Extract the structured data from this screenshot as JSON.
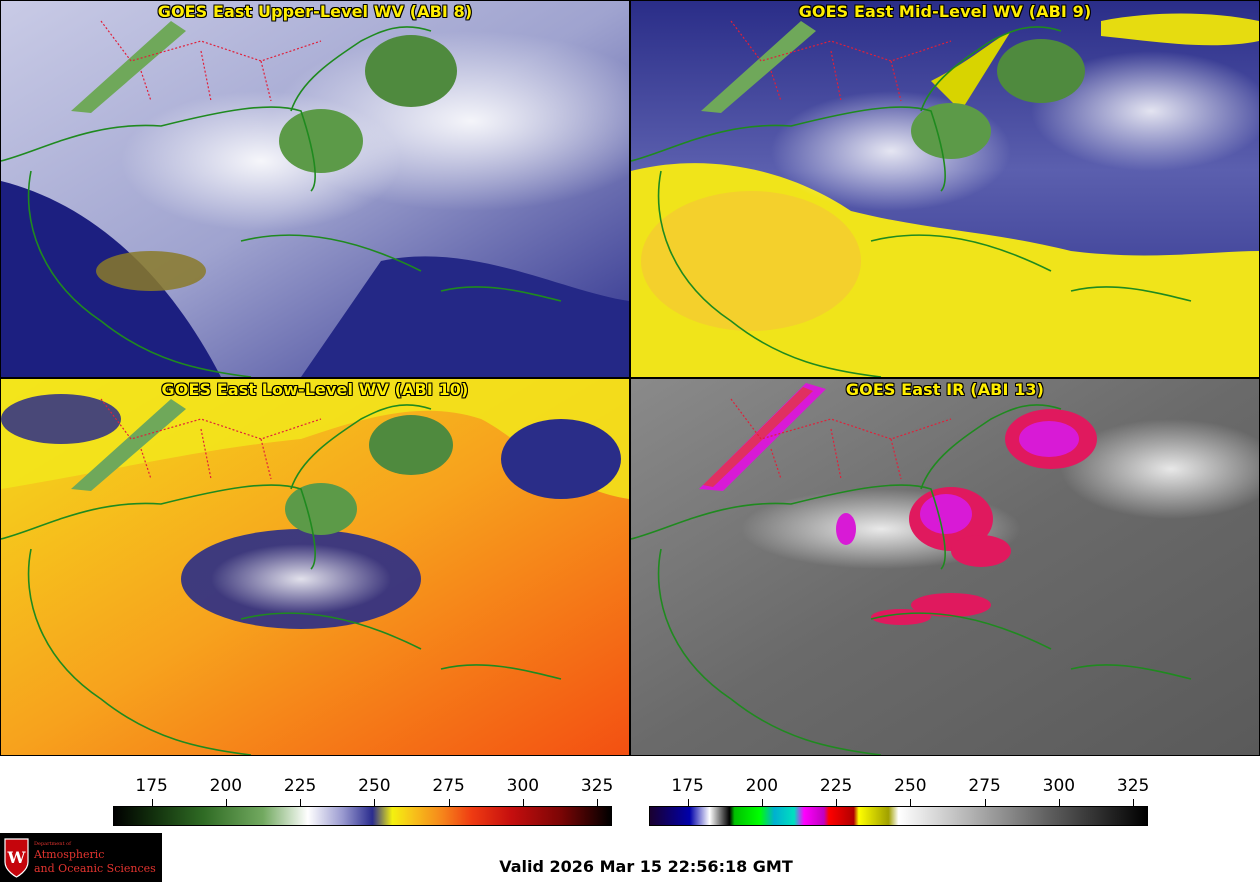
{
  "panels": [
    {
      "title": "GOES East Upper-Level WV (ABI 8)"
    },
    {
      "title": "GOES East Mid-Level WV (ABI 9)"
    },
    {
      "title": "GOES East Low-Level WV (ABI 10)"
    },
    {
      "title": "GOES East IR (ABI 13)"
    }
  ],
  "colorbars": {
    "wv": {
      "ticks": [
        "175",
        "200",
        "225",
        "250",
        "275",
        "300",
        "325"
      ],
      "range": [
        162,
        330
      ]
    },
    "ir": {
      "ticks": [
        "175",
        "200",
        "225",
        "250",
        "275",
        "300",
        "325"
      ],
      "range": [
        162,
        330
      ]
    }
  },
  "footer": {
    "valid_text": "Valid 2026 Mar 15 22:56:18 GMT"
  },
  "logo": {
    "seal_letter": "W",
    "dept_line": "Department of",
    "name_line1": "Atmospheric",
    "name_line2": "and Oceanic Sciences"
  },
  "colors": {
    "title": "#ffee00",
    "coast": "#1f8a1f",
    "border": "#e0203a",
    "logo_red": "#e3342f"
  }
}
